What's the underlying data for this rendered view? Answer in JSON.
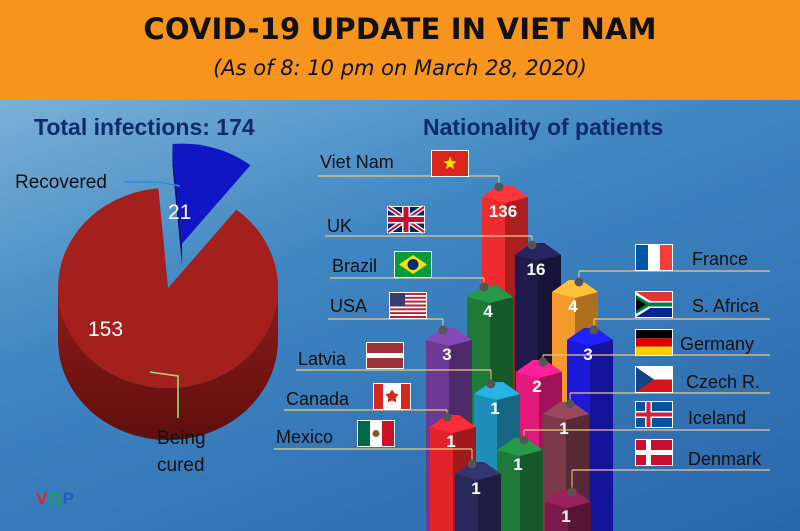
{
  "header": {
    "title": "COVID-19 UPDATE IN VIET NAM",
    "subtitle": "(As of 8: 10 pm on March 28, 2020)"
  },
  "total_infections_label": "Total infections: 174",
  "nationality_title": "Nationality of patients",
  "logo": {
    "text": "VGP",
    "colors": [
      "#e0212d",
      "#1aa34a",
      "#1f5fb8"
    ]
  },
  "colors": {
    "header_bg": "#f7941d",
    "title_text": "#0d2b6b"
  },
  "chart_data": [
    {
      "type": "pie",
      "title": "Total infections: 174",
      "slices": [
        {
          "label": "Recovered",
          "value": 21,
          "color": "#1016c4"
        },
        {
          "label": "Being cured",
          "value": 153,
          "color": "#a3201d"
        }
      ],
      "label_lines": [
        "Being",
        "cured"
      ]
    },
    {
      "type": "bar",
      "title": "Nationality of patients",
      "categories": [
        "Viet Nam",
        "UK",
        "France",
        "Brazil",
        "S. Africa",
        "USA",
        "Germany",
        "Latvia",
        "Czech R.",
        "Canada",
        "Iceland",
        "Mexico",
        "Denmark"
      ],
      "values": [
        136,
        16,
        4,
        4,
        3,
        3,
        2,
        1,
        1,
        1,
        1,
        1,
        1
      ],
      "flags": [
        "vietnam-flag-icon",
        "uk-flag-icon",
        "france-flag-icon",
        "brazil-flag-icon",
        "south-africa-flag-icon",
        "usa-flag-icon",
        "germany-flag-icon",
        "latvia-flag-icon",
        "czech-flag-icon",
        "canada-flag-icon",
        "iceland-flag-icon",
        "mexico-flag-icon",
        "denmark-flag-icon"
      ],
      "bar_colors": [
        "#ee2b2e",
        "#1f1b4d",
        "#f29a2e",
        "#1f7a3a",
        "#1a1ad8",
        "#6b3b93",
        "#e01a7a",
        "#1e8fb8",
        "#7a3a4a",
        "#e0242a",
        "#1f7a3a",
        "#2a2a5a",
        "#7a1a4a"
      ]
    }
  ]
}
